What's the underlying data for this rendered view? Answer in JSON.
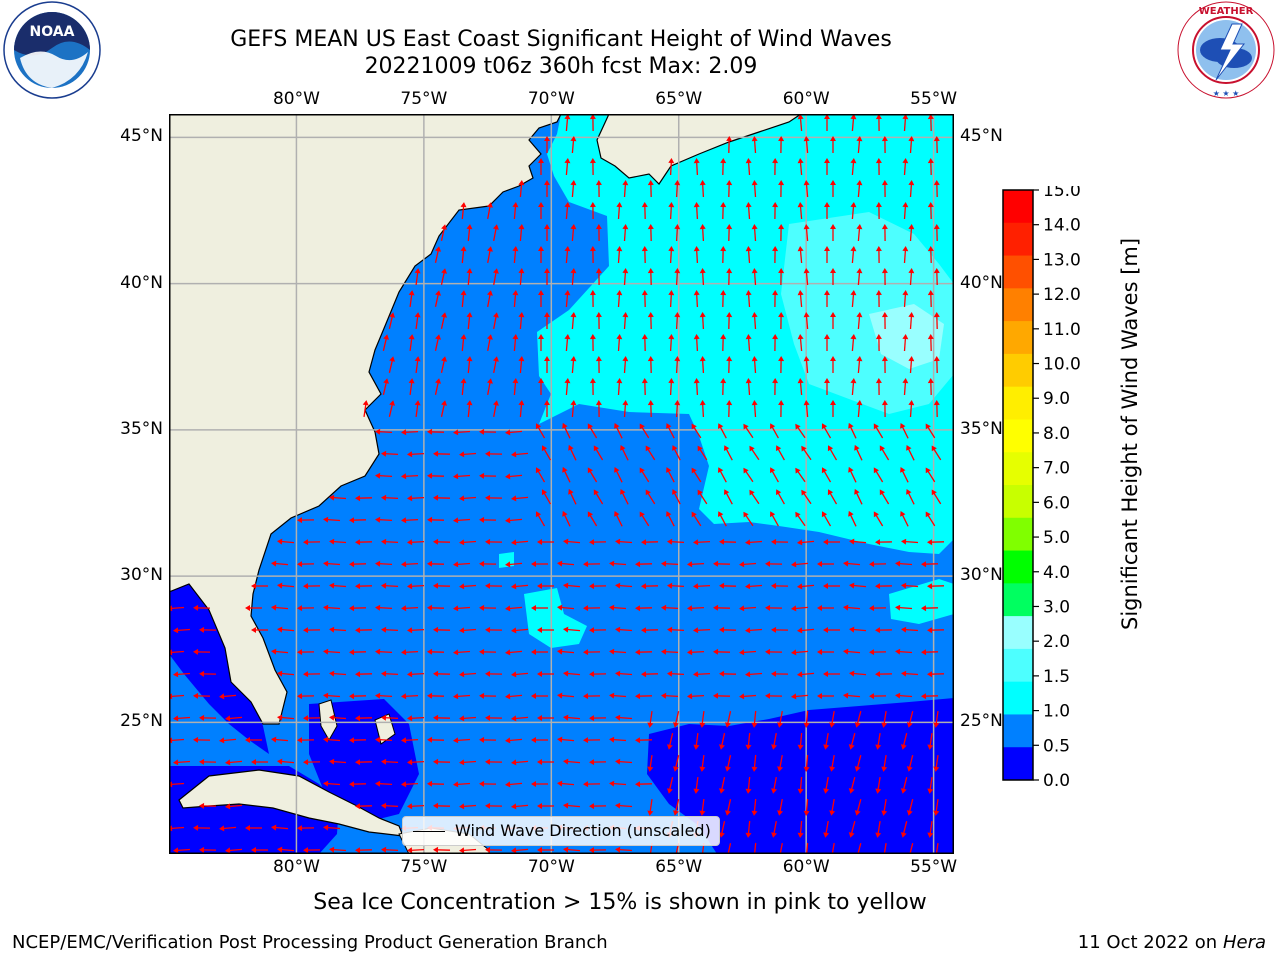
{
  "title": {
    "line1": "GEFS MEAN US East Coast Significant Height of Wind Waves",
    "line2": "20221009 t06z 360h fcst   Max: 2.09"
  },
  "logos": {
    "left": {
      "text": "NOAA",
      "ring_text": "NATIONAL OCEANIC AND ATMOSPHERIC ADMINISTRATION · U.S. DEPARTMENT OF COMMERCE"
    },
    "right": {
      "ring_text": "NATIONAL WEATHER SERVICE"
    }
  },
  "map": {
    "lon_labels": [
      "80°W",
      "75°W",
      "70°W",
      "65°W",
      "60°W",
      "55°W"
    ],
    "lat_labels": [
      "45°N",
      "40°N",
      "35°N",
      "30°N",
      "25°N"
    ],
    "lon_values": [
      -80,
      -75,
      -70,
      -65,
      -60,
      -55
    ],
    "lat_values": [
      45,
      40,
      35,
      30,
      25
    ],
    "extent": {
      "lon_min": -85,
      "lon_max": -54.2,
      "lat_min": 20.5,
      "lat_max": 45.8
    },
    "legend_label": "Wind Wave Direction (unscaled)",
    "colors": {
      "land": "#efefdf",
      "grid": "#b0b0b0",
      "arrow": "#ff0000",
      "band_0_0_5": "#0000ff",
      "band_0_5_1": "#0080ff",
      "band_1_1_5": "#00ffff",
      "band_1_5_2": "#4dffff",
      "band_2_3": "#99ffff"
    }
  },
  "colorbar": {
    "label": "Significant Height of Wind Waves [m]",
    "ticks": [
      "15.0",
      "14.0",
      "13.0",
      "12.0",
      "11.0",
      "10.0",
      "9.0",
      "8.0",
      "7.0",
      "6.0",
      "5.0",
      "4.0",
      "3.0",
      "2.0",
      "1.5",
      "1.0",
      "0.5",
      "0.0"
    ],
    "colors_top_to_bottom": [
      "#ff0000",
      "#ff2000",
      "#ff5000",
      "#ff8000",
      "#ffa800",
      "#ffcc00",
      "#ffee00",
      "#ffff00",
      "#e6ff00",
      "#c8ff00",
      "#80ff00",
      "#00ff00",
      "#00ff60",
      "#99ffff",
      "#4dffff",
      "#00ffff",
      "#0080ff",
      "#0000ff"
    ]
  },
  "footer": {
    "note": "Sea Ice Concentration > 15% is shown in pink to yellow",
    "credit": "NCEP/EMC/Verification Post Processing Product Generation Branch",
    "date": "11 Oct 2022 on",
    "host": "Hera"
  }
}
